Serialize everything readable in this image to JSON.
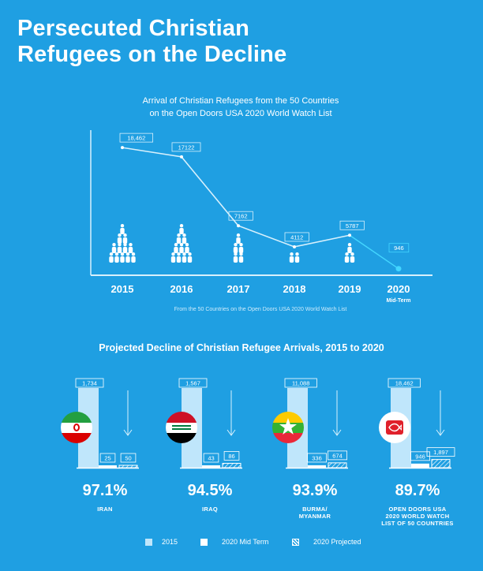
{
  "header": {
    "title_line1": "Persecuted Christian",
    "title_line2": "Refugees on the Decline"
  },
  "chart_data": [
    {
      "type": "line",
      "title_line1": "Arrival of Christian Refugees from the 50 Countries",
      "title_line2": "on the Open Doors USA 2020 World Watch List",
      "source": "From the 50 Countries on the Open Doors USA 2020 World Watch List",
      "categories": [
        "2015",
        "2016",
        "2017",
        "2018",
        "2019",
        "2020"
      ],
      "category_sublabels": [
        "",
        "",
        "",
        "",
        "",
        "Mid-Term"
      ],
      "values": [
        18462,
        17122,
        7162,
        4112,
        5787,
        946
      ],
      "data_labels": [
        "18,462",
        "17122",
        "7162",
        "4112",
        "5787",
        "946"
      ],
      "icon_counts": [
        12,
        10,
        5,
        2,
        3,
        0
      ],
      "ylim": [
        0,
        20000
      ],
      "colors": {
        "line": "#d7f0fc",
        "highlight": "#43d6ff"
      }
    },
    {
      "type": "bar",
      "title": "Projected Decline of Christian Refugee Arrivals, 2015 to 2020",
      "series": [
        {
          "name": "2015",
          "color": "#bfe6fb"
        },
        {
          "name": "2020 Mid Term",
          "color": "#ffffff"
        },
        {
          "name": "2020 Projected",
          "pattern": "hatched"
        }
      ],
      "groups": [
        {
          "country": "IRAN",
          "flag": "iran-flag",
          "values": [
            1734,
            25,
            50
          ],
          "labels": [
            "1,734",
            "25",
            "50"
          ],
          "decline": "97.1%"
        },
        {
          "country": "IRAQ",
          "flag": "iraq-flag",
          "values": [
            1567,
            43,
            86
          ],
          "labels": [
            "1,567",
            "43",
            "86"
          ],
          "decline": "94.5%"
        },
        {
          "country": "BURMA/\nMYANMAR",
          "country_lines": [
            "BURMA/",
            "MYANMAR"
          ],
          "flag": "myanmar-flag",
          "values": [
            11088,
            336,
            674
          ],
          "labels": [
            "11,088",
            "336",
            "674"
          ],
          "decline": "93.9%"
        },
        {
          "country": "OPEN DOORS USA 2020 WORLD WATCH LIST OF 50 COUNTRIES",
          "country_lines": [
            "OPEN DOORS USA",
            "2020 WORLD WATCH",
            "LIST OF 50 COUNTRIES"
          ],
          "flag": "open-doors-logo",
          "values": [
            18462,
            946,
            1897
          ],
          "labels": [
            "18,462",
            "946",
            "1,897"
          ],
          "decline": "89.7%"
        }
      ]
    }
  ],
  "legend": {
    "items": [
      "2015",
      "2020 Mid Term",
      "2020 Projected"
    ]
  }
}
